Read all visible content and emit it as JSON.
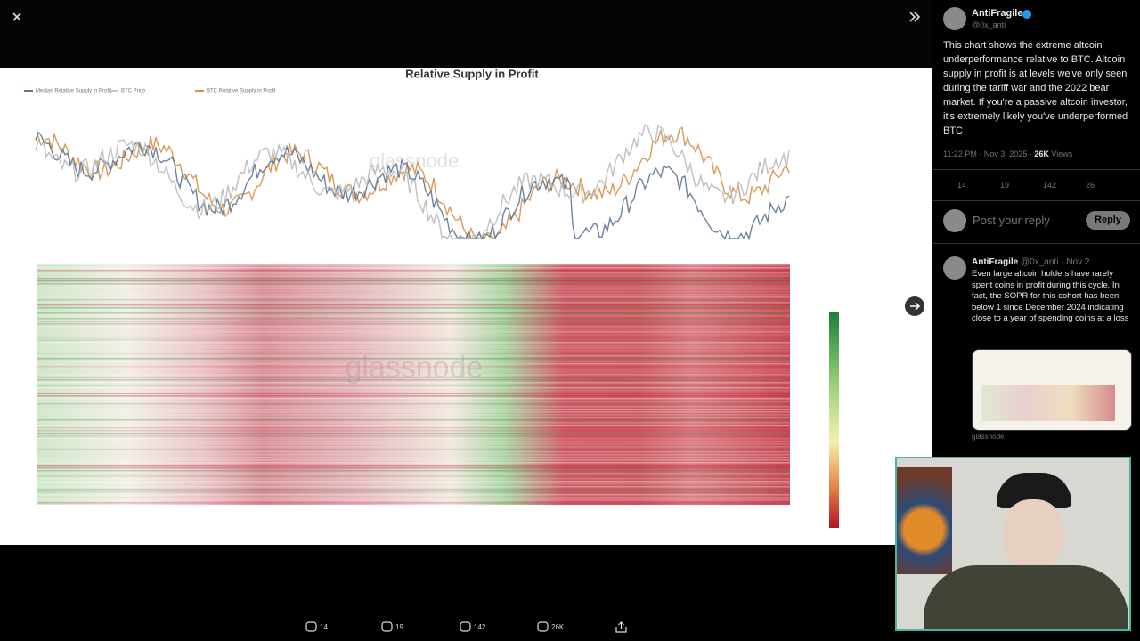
{
  "chart_image": {
    "title": "Relative Supply in Profit",
    "legend": [
      "Median Relative Supply in Profit",
      "BTC Price",
      "BTC Relative Supply in Profit"
    ],
    "watermark": "glassnode"
  },
  "post": {
    "author": "AntiFragile",
    "handle": "@0x_anti",
    "text": "This chart shows the extreme altcoin underperformance relative to BTC. Altcoin supply in profit is at levels we've only seen during the tariff war and the 2022 bear market. If you're a passive altcoin investor, it's extremely likely you've underperformed BTC",
    "time": "11:22 PM · Nov 3, 2025",
    "views": "26K",
    "views_label": "Views",
    "stats": [
      "14",
      "19",
      "142",
      "26"
    ]
  },
  "reply_box": {
    "placeholder": "Post your reply",
    "button": "Reply"
  },
  "reply": {
    "author": "AntiFragile",
    "handle": "@0x_anti",
    "date": "Nov 2",
    "text": "Even large altcoin holders have rarely spent coins in profit during this cycle. In fact, the SOPR for this cohort has been below 1 since December 2024 indicating close to a year of spending coins at a loss",
    "image_caption": "glassnode"
  },
  "action_bar": [
    "14",
    "19",
    "142",
    "26K"
  ]
}
